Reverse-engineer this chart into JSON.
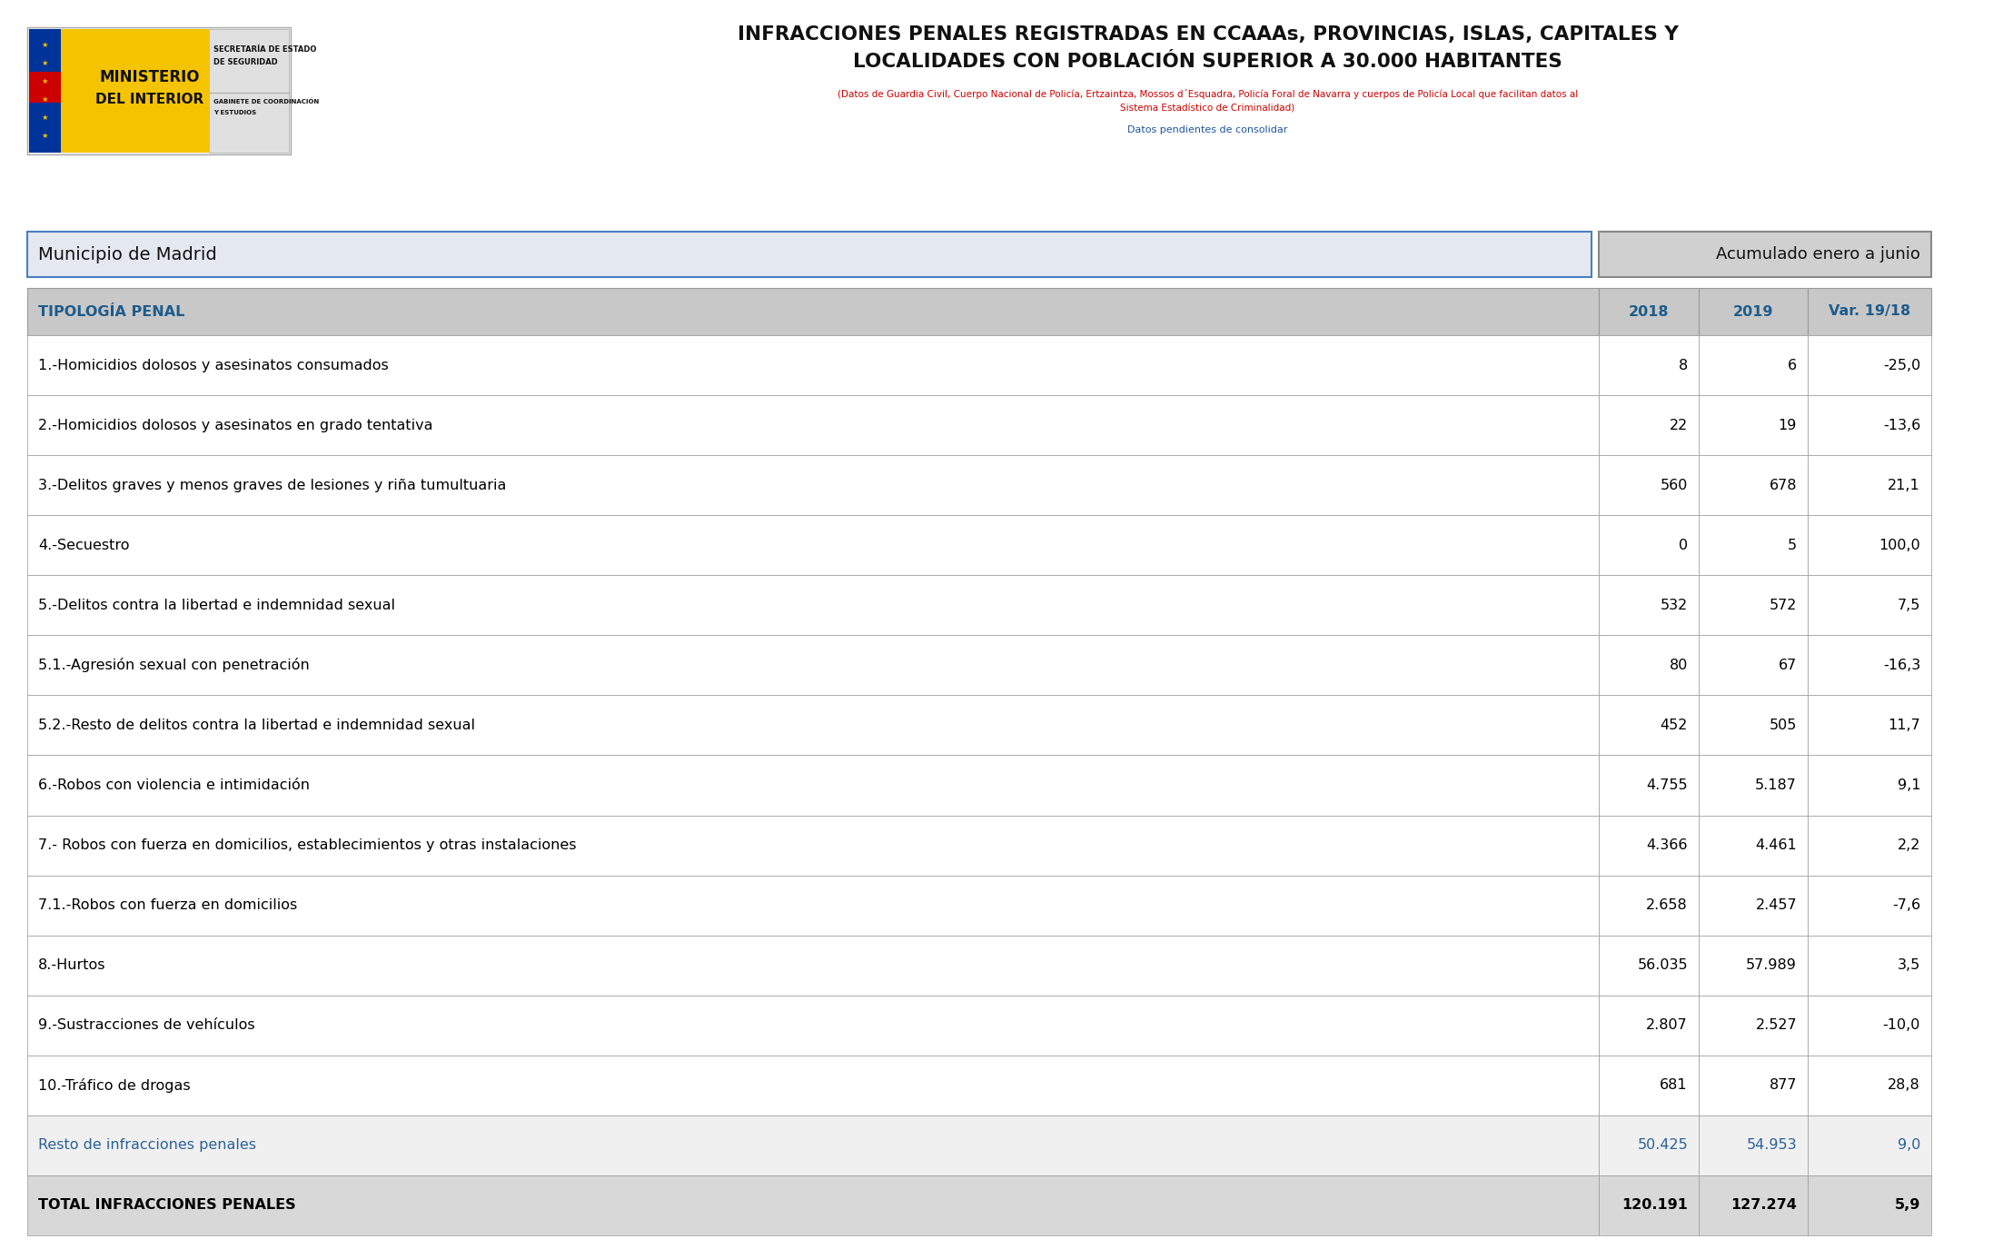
{
  "title_line1": "INFRACCIONES PENALES REGISTRADAS EN CCAAAs, PROVINCIAS, ISLAS, CAPITALES Y",
  "title_line2": "LOCALIDADES CON POBLACIÓN SUPERIOR A 30.000 HABITANTES",
  "subtitle1": "(Datos de Guardia Civil, Cuerpo Nacional de Policía, Ertzaintza, Mossos d´Esquadra, Policía Foral de Navarra y cuerpos de Policía Local que facilitan datos al",
  "subtitle2": "Sistema Estadístico de Criminalidad)",
  "subtitle3": "Datos pendientes de consolidar",
  "municipio": "Municipio de Madrid",
  "periodo": "Acumulado enero a junio",
  "col_headers": [
    "TIPOLOGÍA PENAL",
    "2018",
    "2019",
    "Var. 19/18"
  ],
  "rows": [
    [
      "1.-Homicidios dolosos y asesinatos consumados",
      "8",
      "6",
      "-25,0"
    ],
    [
      "2.-Homicidios dolosos y asesinatos en grado tentativa",
      "22",
      "19",
      "-13,6"
    ],
    [
      "3.-Delitos graves y menos graves de lesiones y riña tumultuaria",
      "560",
      "678",
      "21,1"
    ],
    [
      "4.-Secuestro",
      "0",
      "5",
      "100,0"
    ],
    [
      "5.-Delitos contra la libertad e indemnidad sexual",
      "532",
      "572",
      "7,5"
    ],
    [
      "5.1.-Agresión sexual con penetración",
      "80",
      "67",
      "-16,3"
    ],
    [
      "5.2.-Resto de delitos contra la libertad e indemnidad sexual",
      "452",
      "505",
      "11,7"
    ],
    [
      "6.-Robos con violencia e intimidación",
      "4.755",
      "5.187",
      "9,1"
    ],
    [
      "7.- Robos con fuerza en domicilios, establecimientos y otras instalaciones",
      "4.366",
      "4.461",
      "2,2"
    ],
    [
      "7.1.-Robos con fuerza en domicilios",
      "2.658",
      "2.457",
      "-7,6"
    ],
    [
      "8.-Hurtos",
      "56.035",
      "57.989",
      "3,5"
    ],
    [
      "9.-Sustracciones de vehículos",
      "2.807",
      "2.527",
      "-10,0"
    ],
    [
      "10.-Tráfico de drogas",
      "681",
      "877",
      "28,8"
    ],
    [
      "Resto de infracciones penales",
      "50.425",
      "54.953",
      "9,0"
    ],
    [
      "TOTAL INFRACCIONES PENALES",
      "120.191",
      "127.274",
      "5,9"
    ]
  ],
  "row_bg_white": "#ffffff",
  "row_bg_light": "#f5f5f5",
  "row_bg_resto": "#f0f0f0",
  "row_bg_total": "#d8d8d8",
  "row_text_normal": "#000000",
  "row_text_blue": "#2a6099",
  "header_bg": "#c8c8c8",
  "header_text_color": "#1e5c8c",
  "municipio_bg": "#e4e8f0",
  "municipio_border": "#4a7fc0",
  "periodo_bg": "#d0d0d0",
  "periodo_border": "#888888",
  "bg_color": "#ffffff",
  "table_border": "#999999",
  "logo_yellow": "#f5c400",
  "logo_blue": "#003399",
  "logo_red": "#cc0000"
}
